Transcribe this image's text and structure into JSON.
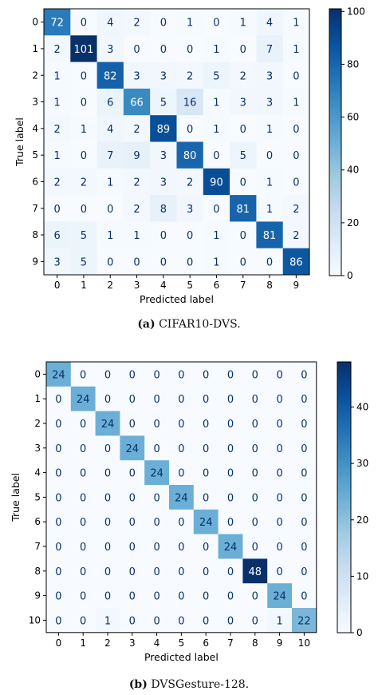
{
  "chart_data": [
    {
      "type": "heatmap",
      "caption_tag": "(a)",
      "caption_text": "CIFAR10-DVS.",
      "xlabel": "Predicted label",
      "ylabel": "True label",
      "labels": [
        "0",
        "1",
        "2",
        "3",
        "4",
        "5",
        "6",
        "7",
        "8",
        "9"
      ],
      "matrix": [
        [
          72,
          0,
          4,
          2,
          0,
          1,
          0,
          1,
          4,
          1
        ],
        [
          2,
          101,
          3,
          0,
          0,
          0,
          1,
          0,
          7,
          1
        ],
        [
          1,
          0,
          82,
          3,
          3,
          2,
          5,
          2,
          3,
          0
        ],
        [
          1,
          0,
          6,
          66,
          5,
          16,
          1,
          3,
          3,
          1
        ],
        [
          2,
          1,
          4,
          2,
          89,
          0,
          1,
          0,
          1,
          0
        ],
        [
          1,
          0,
          7,
          9,
          3,
          80,
          0,
          5,
          0,
          0
        ],
        [
          2,
          2,
          1,
          2,
          3,
          2,
          90,
          0,
          1,
          0
        ],
        [
          0,
          0,
          0,
          2,
          8,
          3,
          0,
          81,
          1,
          2
        ],
        [
          6,
          5,
          1,
          1,
          0,
          0,
          1,
          0,
          81,
          2
        ],
        [
          3,
          5,
          0,
          0,
          0,
          0,
          1,
          0,
          0,
          86
        ]
      ],
      "colorbar": {
        "min": 0,
        "max": 101,
        "ticks": [
          0,
          20,
          40,
          60,
          80,
          100
        ]
      },
      "colormap": "Blues"
    },
    {
      "type": "heatmap",
      "caption_tag": "(b)",
      "caption_text": "DVSGesture-128.",
      "xlabel": "Predicted label",
      "ylabel": "True label",
      "labels": [
        "0",
        "1",
        "2",
        "3",
        "4",
        "5",
        "6",
        "7",
        "8",
        "9",
        "10"
      ],
      "matrix": [
        [
          24,
          0,
          0,
          0,
          0,
          0,
          0,
          0,
          0,
          0,
          0
        ],
        [
          0,
          24,
          0,
          0,
          0,
          0,
          0,
          0,
          0,
          0,
          0
        ],
        [
          0,
          0,
          24,
          0,
          0,
          0,
          0,
          0,
          0,
          0,
          0
        ],
        [
          0,
          0,
          0,
          24,
          0,
          0,
          0,
          0,
          0,
          0,
          0
        ],
        [
          0,
          0,
          0,
          0,
          24,
          0,
          0,
          0,
          0,
          0,
          0
        ],
        [
          0,
          0,
          0,
          0,
          0,
          24,
          0,
          0,
          0,
          0,
          0
        ],
        [
          0,
          0,
          0,
          0,
          0,
          0,
          24,
          0,
          0,
          0,
          0
        ],
        [
          0,
          0,
          0,
          0,
          0,
          0,
          0,
          24,
          0,
          0,
          0
        ],
        [
          0,
          0,
          0,
          0,
          0,
          0,
          0,
          0,
          48,
          0,
          0
        ],
        [
          0,
          0,
          0,
          0,
          0,
          0,
          0,
          0,
          0,
          24,
          0
        ],
        [
          0,
          0,
          1,
          0,
          0,
          0,
          0,
          0,
          0,
          1,
          22
        ]
      ],
      "colorbar": {
        "min": 0,
        "max": 48,
        "ticks": [
          0,
          10,
          20,
          30,
          40
        ]
      },
      "colormap": "Blues"
    }
  ]
}
